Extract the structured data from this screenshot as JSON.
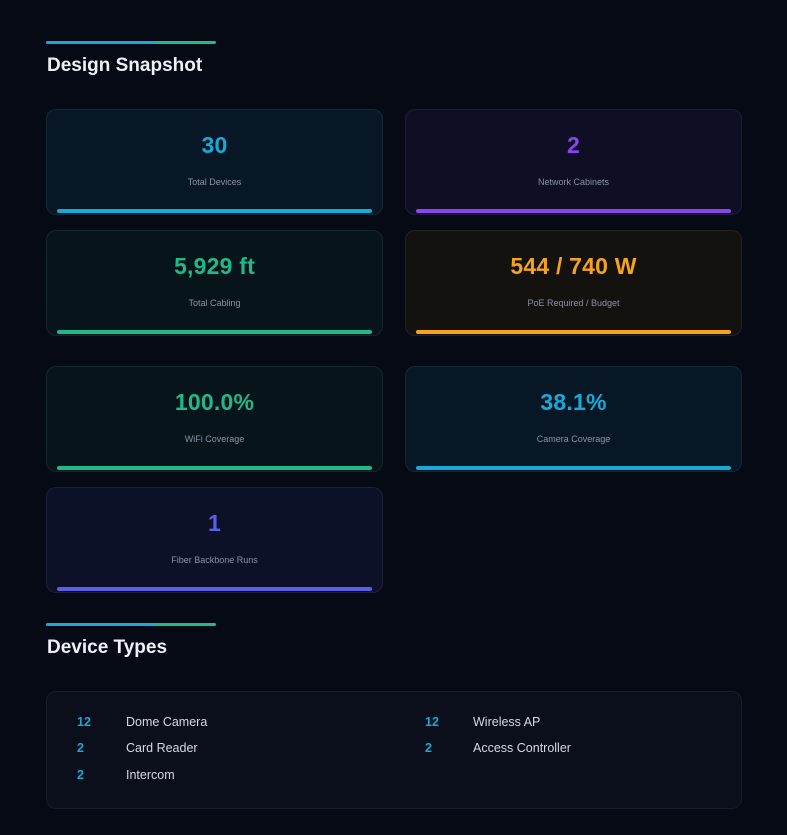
{
  "sections": {
    "snapshot_title": "Design Snapshot",
    "devices_title": "Device Types"
  },
  "colors": {
    "cyan": "#19a9d6",
    "purple": "#8b45f0",
    "green": "#1fb98a",
    "orange": "#f5a31f",
    "indigo": "#5b5fe8"
  },
  "cards": [
    {
      "value": "30",
      "label": "Total Devices",
      "color": "cyan"
    },
    {
      "value": "2",
      "label": "Network Cabinets",
      "color": "purple"
    },
    {
      "value": "5,929 ft",
      "label": "Total Cabling",
      "color": "green"
    },
    {
      "value": "544 / 740 W",
      "label": "PoE Required / Budget",
      "color": "orange"
    },
    {
      "value": "100.0%",
      "label": "WiFi Coverage",
      "color": "green"
    },
    {
      "value": "38.1%",
      "label": "Camera Coverage",
      "color": "cyan"
    },
    {
      "value": "1",
      "label": "Fiber Backbone Runs",
      "color": "indigo"
    }
  ],
  "device_types": [
    {
      "count": "12",
      "name": "Dome Camera"
    },
    {
      "count": "12",
      "name": "Wireless AP"
    },
    {
      "count": "2",
      "name": "Card Reader"
    },
    {
      "count": "2",
      "name": "Access Controller"
    },
    {
      "count": "2",
      "name": "Intercom"
    }
  ]
}
